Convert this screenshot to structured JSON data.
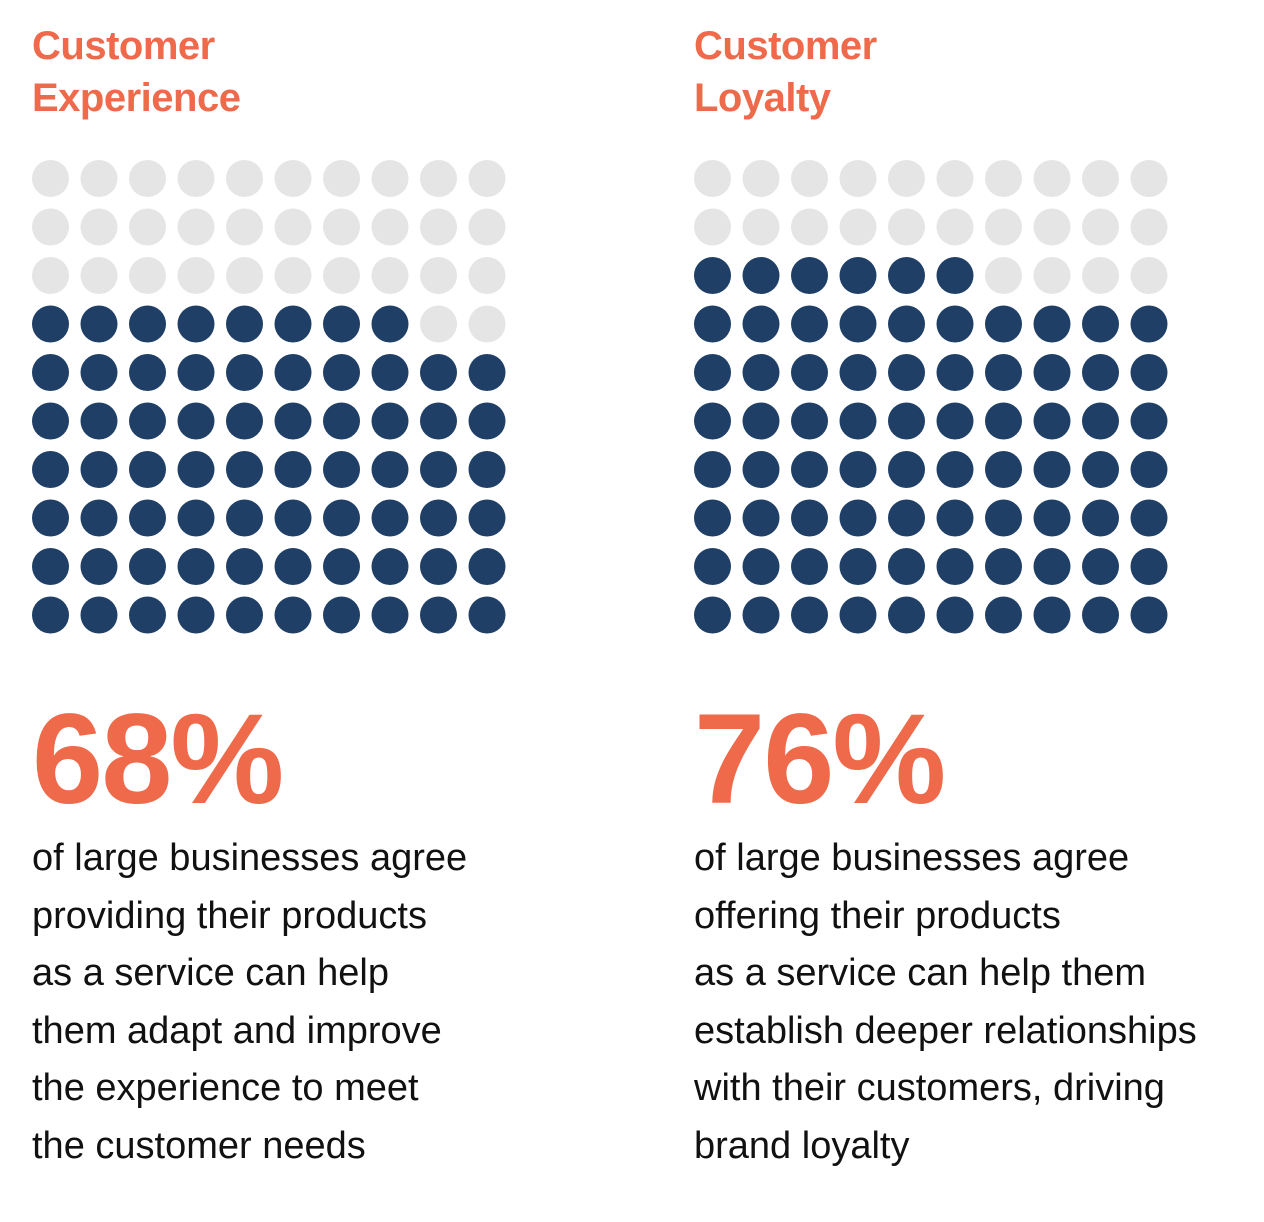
{
  "colors": {
    "accent": "#EE6A4B",
    "filled": "#1F3F66",
    "empty": "#E5E5E5"
  },
  "chart_data": [
    {
      "type": "waffle",
      "title_lines": [
        "Customer",
        "Experience"
      ],
      "grid": {
        "rows": 10,
        "cols": 10
      },
      "value": 68,
      "value_label": "68%",
      "description_lines": [
        "of large businesses agree",
        "providing their products",
        "as a service can help",
        "them adapt and improve",
        "the experience to meet",
        "the customer needs"
      ]
    },
    {
      "type": "waffle",
      "title_lines": [
        "Customer",
        "Loyalty"
      ],
      "grid": {
        "rows": 10,
        "cols": 10
      },
      "value": 76,
      "value_label": "76%",
      "description_lines": [
        "of large businesses agree",
        "offering their products",
        "as a service can help them",
        "establish deeper relationships",
        "with their customers, driving",
        "brand loyalty"
      ]
    }
  ]
}
